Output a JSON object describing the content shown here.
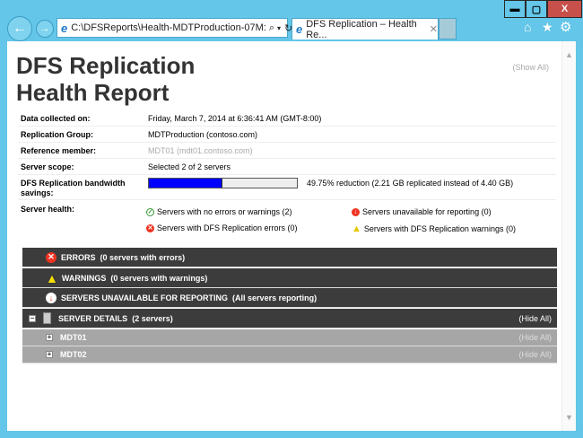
{
  "browser": {
    "address": "C:\\DFSReports\\Health-MDTProduction-07M:",
    "tab_title": "DFS Replication – Health Re...",
    "minimize": "▬",
    "maximize": "▢",
    "close": "X"
  },
  "report": {
    "title_line1": "DFS Replication",
    "title_line2": "Health Report",
    "show_all": "(Show All)",
    "fields": [
      {
        "label": "Data collected on:",
        "value": "Friday, March 7, 2014 at 6:36:41 AM (GMT-8:00)"
      },
      {
        "label": "Replication Group:",
        "value": "MDTProduction (contoso.com)"
      },
      {
        "label": "Reference member:",
        "value": "MDT01 (mdt01.contoso.com)"
      },
      {
        "label": "Server scope:",
        "value": "Selected 2 of 2 servers"
      },
      {
        "label": "DFS Replication bandwidth savings:",
        "value": "49.75% reduction (2.21 GB replicated instead of 4.40 GB)",
        "progress_percent": 49.75
      },
      {
        "label": "Server health:"
      }
    ],
    "health": {
      "ok": "Servers with no errors or warnings (2)",
      "errors": "Servers with DFS Replication errors (0)",
      "unavailable": "Servers unavailable for reporting (0)",
      "warnings": "Servers with DFS Replication warnings (0)"
    },
    "sections": [
      {
        "title": "ERRORS",
        "detail": "(0 servers with errors)"
      },
      {
        "title": "WARNINGS",
        "detail": "(0 servers with warnings)"
      },
      {
        "title": "SERVERS UNAVAILABLE FOR REPORTING",
        "detail": "(All servers reporting)"
      },
      {
        "title": "SERVER DETAILS",
        "detail": "(2 servers)",
        "hide": "(Hide All)"
      }
    ],
    "servers": [
      {
        "name": "MDT01",
        "hide": "(Hide All)"
      },
      {
        "name": "MDT02",
        "hide": "(Hide All)"
      }
    ]
  },
  "colors": {
    "frame": "#64c6e8",
    "progress": "#0000ff",
    "section": "#3c3c3c",
    "subsection": "#a6a6a6"
  }
}
